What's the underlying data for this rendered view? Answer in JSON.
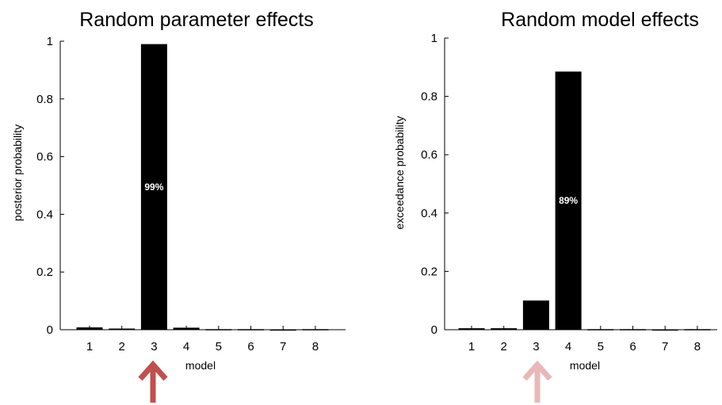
{
  "chart_data": [
    {
      "type": "bar",
      "title": "Random parameter effects",
      "xlabel": "model",
      "ylabel": "posterior probability",
      "categories": [
        "1",
        "2",
        "3",
        "4",
        "5",
        "6",
        "7",
        "8"
      ],
      "values": [
        0.008,
        0.004,
        0.99,
        0.007,
        0.002,
        0.002,
        0.001,
        0.002
      ],
      "ylim": [
        0,
        1
      ],
      "yticks": [
        "0",
        "0.2",
        "0.4",
        "0.6",
        "0.8",
        "1"
      ],
      "bar_color": "#000000",
      "annotation": {
        "category": "3",
        "text": "99%"
      },
      "arrow": {
        "category": "3",
        "color": "#c0504d"
      }
    },
    {
      "type": "bar",
      "title": "Random model effects",
      "xlabel": "model",
      "ylabel": "exceedance probability",
      "categories": [
        "1",
        "2",
        "3",
        "4",
        "5",
        "6",
        "7",
        "8"
      ],
      "values": [
        0.005,
        0.005,
        0.1,
        0.885,
        0.002,
        0.002,
        0.001,
        0.002
      ],
      "ylim": [
        0,
        1
      ],
      "yticks": [
        "0",
        "0.2",
        "0.4",
        "0.6",
        "0.8",
        "1"
      ],
      "bar_color": "#000000",
      "annotation": {
        "category": "4",
        "text": "89%"
      },
      "arrow": {
        "category": "3",
        "color": "#e9b8b8"
      }
    }
  ]
}
